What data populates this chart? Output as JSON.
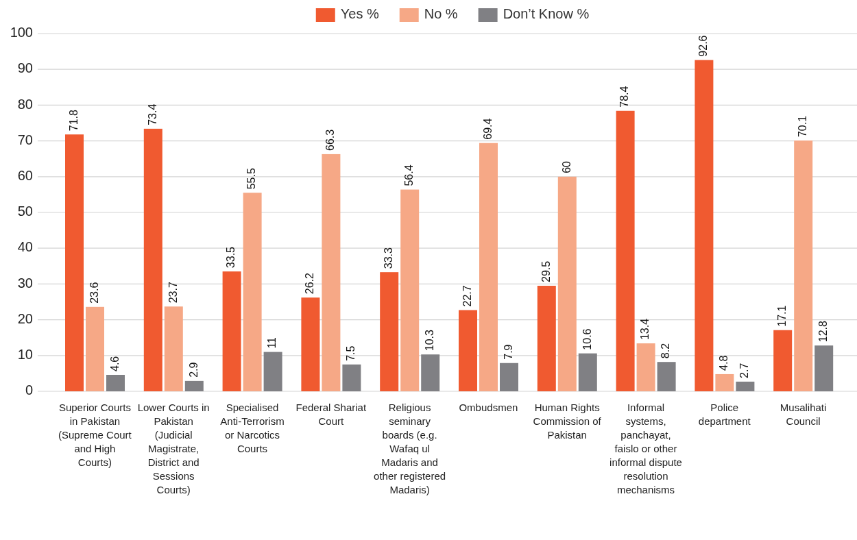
{
  "chart_data": {
    "type": "bar",
    "categories": [
      "Superior Courts in Pakistan (Supreme Court and High Courts)",
      "Lower Courts in Pakistan (Judicial Magistrate, District and Sessions Courts)",
      "Specialised Anti-Terrorism or Narcotics Courts",
      "Federal Shariat Court",
      "Religious seminary boards (e.g. Wafaq ul Madaris and other registered Madaris)",
      "Ombudsmen",
      "Human Rights Commission of Pakistan",
      "Informal systems, panchayat, faislo or other informal dispute resolution mechanisms",
      "Police department",
      "Musalihati Council"
    ],
    "series": [
      {
        "name": "Yes %",
        "color": "#f05a30",
        "values": [
          71.8,
          73.4,
          33.5,
          26.2,
          33.3,
          22.7,
          29.5,
          78.4,
          92.6,
          17.1
        ]
      },
      {
        "name": "No %",
        "color": "#f6a886",
        "values": [
          23.6,
          23.7,
          55.5,
          66.3,
          56.4,
          69.4,
          60,
          13.4,
          4.8,
          70.1
        ]
      },
      {
        "name": "Don’t Know %",
        "color": "#808084",
        "values": [
          4.6,
          2.9,
          11,
          7.5,
          10.3,
          7.9,
          10.6,
          8.2,
          2.7,
          12.8
        ]
      }
    ],
    "ylim": [
      0,
      100
    ],
    "yticks": [
      0,
      10,
      20,
      30,
      40,
      50,
      60,
      70,
      80,
      90,
      100
    ],
    "grid": "y",
    "legend": "top",
    "data_labels": true
  }
}
